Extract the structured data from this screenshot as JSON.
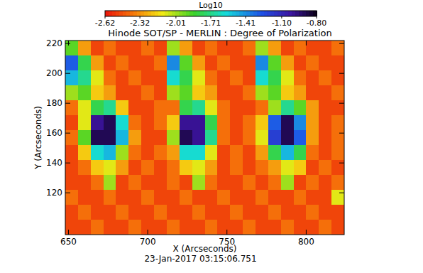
{
  "chart_data": {
    "type": "heatmap",
    "title": "Hinode SOT/SP - MERLIN : Degree of Polarization",
    "x_label": "X (Arcseconds)",
    "y_label": "Y (Arcseconds)",
    "annotations": [
      "23-Jan-2017 03:15:06.751"
    ],
    "x": [
      652,
      660,
      668,
      676,
      684,
      692,
      700,
      708,
      716,
      724,
      732,
      740,
      748,
      756,
      764,
      772,
      780,
      788,
      796,
      804,
      812,
      820
    ],
    "y": [
      217,
      207,
      197,
      187,
      177,
      167,
      157,
      147,
      137,
      127,
      117,
      107,
      97
    ],
    "values": [
      [
        -1.9,
        -2.3,
        -2.5,
        -2.4,
        -2.5,
        -2.5,
        -2.4,
        -2.5,
        -2.0,
        -2.3,
        -2.5,
        -2.4,
        -2.5,
        -2.5,
        -2.4,
        -2.0,
        -2.3,
        -2.5,
        -2.4,
        -2.5,
        -2.5,
        -2.4
      ],
      [
        -1.3,
        -1.8,
        -2.3,
        -2.5,
        -2.4,
        -2.5,
        -2.5,
        -2.4,
        -1.4,
        -1.9,
        -2.3,
        -2.5,
        -2.4,
        -2.5,
        -2.5,
        -1.4,
        -1.9,
        -2.3,
        -2.5,
        -2.4,
        -2.5,
        -2.5
      ],
      [
        -1.5,
        -1.7,
        -2.1,
        -2.4,
        -2.5,
        -2.4,
        -2.5,
        -2.5,
        -1.6,
        -1.8,
        -2.1,
        -2.4,
        -2.5,
        -2.4,
        -2.5,
        -1.6,
        -1.8,
        -2.1,
        -2.4,
        -2.5,
        -2.4,
        -2.5
      ],
      [
        -2.0,
        -1.9,
        -2.2,
        -2.3,
        -2.5,
        -2.5,
        -2.4,
        -2.5,
        -2.0,
        -1.9,
        -2.2,
        -2.3,
        -2.5,
        -2.5,
        -2.4,
        -2.0,
        -1.9,
        -2.2,
        -2.3,
        -2.5,
        -2.5,
        -2.4
      ],
      [
        -2.4,
        -2.1,
        -1.8,
        -1.7,
        -2.2,
        -2.5,
        -2.5,
        -2.4,
        -2.4,
        -1.8,
        -1.7,
        -2.1,
        -2.4,
        -2.5,
        -2.5,
        -2.4,
        -2.0,
        -1.7,
        -1.9,
        -2.3,
        -2.5,
        -2.5
      ],
      [
        -2.5,
        -2.1,
        -1.0,
        -0.9,
        -1.6,
        -2.4,
        -2.5,
        -2.4,
        -2.2,
        -1.0,
        -1.0,
        -1.8,
        -2.4,
        -2.5,
        -2.4,
        -2.2,
        -1.3,
        -0.9,
        -1.4,
        -2.3,
        -2.5,
        -2.4
      ],
      [
        -2.4,
        -1.9,
        -0.9,
        -0.9,
        -1.5,
        -2.3,
        -2.5,
        -2.5,
        -2.0,
        -0.9,
        -1.0,
        -1.7,
        -2.4,
        -2.5,
        -2.4,
        -2.1,
        -1.2,
        -0.9,
        -1.3,
        -2.3,
        -2.5,
        -2.4
      ],
      [
        -2.5,
        -2.2,
        -1.6,
        -1.5,
        -2.0,
        -2.4,
        -2.5,
        -2.4,
        -2.3,
        -1.6,
        -1.6,
        -2.1,
        -2.5,
        -2.4,
        -2.5,
        -2.3,
        -1.8,
        -1.5,
        -1.8,
        -2.4,
        -2.5,
        -2.4
      ],
      [
        -2.5,
        -2.4,
        -2.2,
        -2.1,
        -2.3,
        -2.5,
        -2.4,
        -2.5,
        -2.4,
        -2.2,
        -2.1,
        -2.3,
        -2.5,
        -2.4,
        -2.5,
        -2.4,
        -2.3,
        -2.1,
        -2.2,
        -2.5,
        -2.4,
        -2.5
      ],
      [
        -2.5,
        -2.5,
        -2.4,
        -2.0,
        -2.5,
        -2.4,
        -2.5,
        -2.5,
        -2.4,
        -2.5,
        -2.0,
        -2.4,
        -2.5,
        -2.5,
        -2.4,
        -2.5,
        -2.4,
        -2.0,
        -2.5,
        -2.4,
        -2.5,
        -2.4
      ],
      [
        -2.4,
        -2.5,
        -2.5,
        -2.4,
        -2.5,
        -2.5,
        -2.4,
        -2.5,
        -2.5,
        -2.4,
        -2.5,
        -2.5,
        -2.4,
        -2.5,
        -2.5,
        -2.4,
        -2.5,
        -2.5,
        -2.4,
        -2.5,
        -2.5,
        -2.1
      ],
      [
        -2.5,
        -2.4,
        -2.5,
        -2.5,
        -2.4,
        -2.5,
        -2.5,
        -2.4,
        -2.5,
        -2.5,
        -2.4,
        -2.5,
        -2.5,
        -2.4,
        -2.5,
        -2.5,
        -2.4,
        -2.5,
        -2.5,
        -2.4,
        -2.5,
        -2.5
      ],
      [
        -2.5,
        -2.5,
        -2.4,
        -2.5,
        -2.5,
        -2.4,
        -2.5,
        -2.5,
        -2.4,
        -2.5,
        -2.5,
        -2.4,
        -2.5,
        -2.5,
        -2.4,
        -2.5,
        -2.5,
        -2.4,
        -2.5,
        -2.5,
        -2.4,
        -2.5
      ]
    ],
    "xlim": [
      648,
      824
    ],
    "ylim": [
      92,
      222
    ],
    "xticks": [
      650,
      700,
      750,
      800
    ],
    "yticks": [
      120,
      140,
      160,
      180,
      200,
      220
    ],
    "color_scale": {
      "label": "Log10",
      "range": [
        -2.62,
        -0.8
      ],
      "ticks": [
        -2.62,
        -2.32,
        -2.01,
        -1.71,
        -1.41,
        {
          "value": -1.1,
          "label": "-1.10"
        },
        {
          "value": -0.8,
          "label": "-0.80"
        }
      ]
    }
  }
}
